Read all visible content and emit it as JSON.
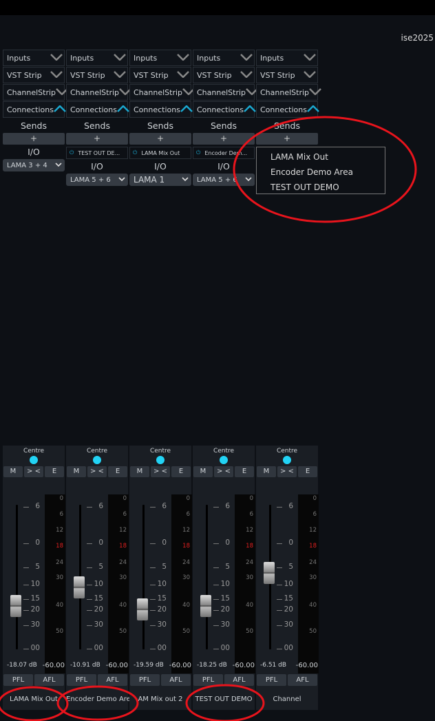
{
  "workspace_label": "ise2025",
  "panel_rows": [
    {
      "label": "Inputs",
      "icon": "chevron-down-icon"
    },
    {
      "label": "VST Strip",
      "icon": "chevron-down-icon"
    },
    {
      "label": "ChannelStrip",
      "icon": "chevron-down-icon"
    },
    {
      "label": "Connections",
      "icon": "chevron-up-icon"
    }
  ],
  "sends_label": "Sends",
  "add_label": "+",
  "io_label": "I/O",
  "accent": "#1aa8d0",
  "strips": [
    {
      "send": null,
      "io": "LAMA 3 + 4",
      "pan": "Centre",
      "db": "-18.07 dB",
      "meter": "-60.00",
      "name": "LAMA Mix Out",
      "fader_db": -18.07
    },
    {
      "send": "TEST OUT DE...",
      "io": "LAMA 5 + 6",
      "pan": "Centre",
      "db": "-10.91 dB",
      "meter": "-60.00",
      "name": "Encoder Demo Area",
      "fader_db": -10.91
    },
    {
      "send": "LAMA Mix Out",
      "io": "LAMA 1",
      "pan": "Centre",
      "db": "-19.59 dB",
      "meter": "-60.00",
      "name": "AM Mix out 2",
      "fader_db": -19.59
    },
    {
      "send": "Encoder Dem...",
      "io": "LAMA 5 + 6",
      "pan": "Centre",
      "db": "-18.25 dB",
      "meter": "-60.00",
      "name": "TEST OUT DEMO",
      "fader_db": -18.25
    },
    {
      "send": null,
      "io": null,
      "pan": "Centre",
      "db": "-6.51 dB",
      "meter": "-60.00",
      "name": "Channel",
      "fader_db": -6.51
    }
  ],
  "buttons": {
    "mute": "M",
    "swap": "> <",
    "e": "E",
    "pfl": "PFL",
    "afl": "AFL"
  },
  "fader_scale": [
    "6",
    "0",
    "5",
    "10",
    "15",
    "20",
    "30",
    "00"
  ],
  "meter_scale": [
    "0",
    "6",
    "12",
    "18",
    "24",
    "30",
    "40",
    "50"
  ],
  "menu": {
    "items": [
      "LAMA Mix Out",
      "Encoder Demo Area",
      "TEST OUT DEMO"
    ]
  }
}
